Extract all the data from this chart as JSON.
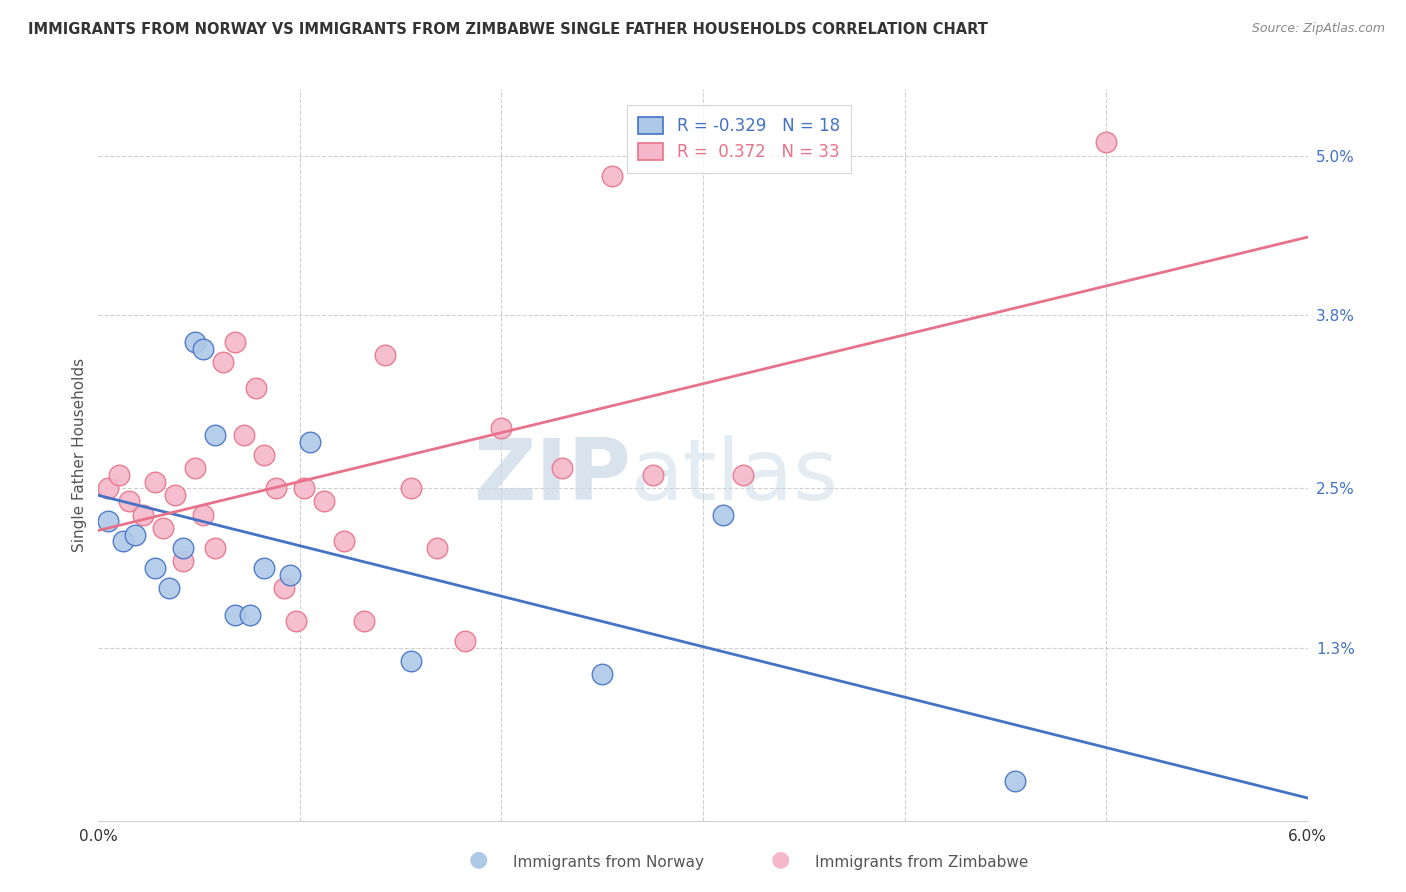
{
  "title": "IMMIGRANTS FROM NORWAY VS IMMIGRANTS FROM ZIMBABWE SINGLE FATHER HOUSEHOLDS CORRELATION CHART",
  "source": "Source: ZipAtlas.com",
  "ylabel": "Single Father Households",
  "xlim": [
    0.0,
    6.0
  ],
  "ylim": [
    0.0,
    5.5
  ],
  "ytick_positions": [
    1.3,
    2.5,
    3.8,
    5.0
  ],
  "ytick_labels": [
    "1.3%",
    "2.5%",
    "3.8%",
    "5.0%"
  ],
  "xtick_positions": [
    0.0,
    1.0,
    2.0,
    3.0,
    4.0,
    5.0,
    6.0
  ],
  "xtick_labels": [
    "0.0%",
    "",
    "",
    "",
    "",
    "",
    "6.0%"
  ],
  "watermark": "ZIPatlas",
  "norway_color": "#aec9e8",
  "zimbabwe_color": "#f5b8ca",
  "norway_R": -0.329,
  "norway_N": 18,
  "zimbabwe_R": 0.372,
  "zimbabwe_N": 33,
  "norway_line_color": "#4472c4",
  "zimbabwe_line_color": "#e8728a",
  "norway_x": [
    0.05,
    0.12,
    0.18,
    0.28,
    0.35,
    0.42,
    0.48,
    0.52,
    0.58,
    0.68,
    0.75,
    0.82,
    0.95,
    1.05,
    1.55,
    2.5,
    3.1,
    4.55
  ],
  "norway_y": [
    2.25,
    2.1,
    2.15,
    1.9,
    1.75,
    2.05,
    3.6,
    3.55,
    2.9,
    1.55,
    1.55,
    1.9,
    1.85,
    2.85,
    1.2,
    1.1,
    2.3,
    0.3
  ],
  "zimbabwe_x": [
    0.05,
    0.1,
    0.15,
    0.22,
    0.28,
    0.32,
    0.38,
    0.42,
    0.48,
    0.52,
    0.58,
    0.62,
    0.68,
    0.72,
    0.78,
    0.82,
    0.88,
    0.92,
    0.98,
    1.02,
    1.12,
    1.22,
    1.32,
    1.42,
    1.55,
    1.68,
    1.82,
    2.0,
    2.55,
    2.75,
    2.3,
    3.2,
    5.0
  ],
  "zimbabwe_y": [
    2.5,
    2.6,
    2.4,
    2.3,
    2.55,
    2.2,
    2.45,
    1.95,
    2.65,
    2.3,
    2.05,
    3.45,
    3.6,
    2.9,
    3.25,
    2.75,
    2.5,
    1.75,
    1.5,
    2.5,
    2.4,
    2.1,
    1.5,
    3.5,
    2.5,
    2.05,
    1.35,
    2.95,
    4.85,
    2.6,
    2.65,
    2.6,
    5.1
  ]
}
